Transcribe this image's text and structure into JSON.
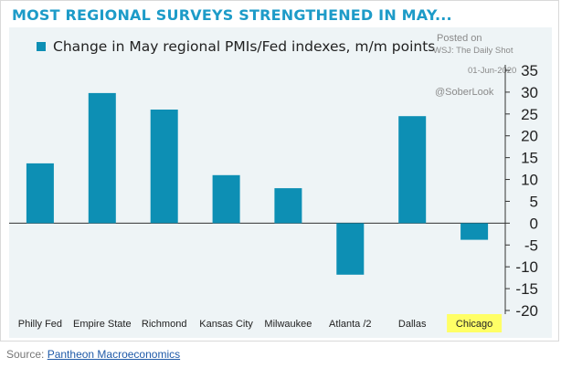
{
  "header": {
    "title": "MOST REGIONAL SURVEYS STRENGTHENED IN MAY..."
  },
  "legend": {
    "label": "Change in May regional PMIs/Fed indexes, m/m points"
  },
  "watermark": {
    "posted": "Posted on",
    "source": "WSJ: The Daily Shot",
    "date": "01-Jun-2020",
    "handle": "@SoberLook"
  },
  "footer": {
    "source_prefix": "Source: ",
    "source_link": "Pantheon Macroeconomics"
  },
  "colors": {
    "bar": "#0d8fb4",
    "title": "#1d9bc8",
    "highlight": "#ffff66",
    "panel": "#eef4f6"
  },
  "chart_data": {
    "type": "bar",
    "title": "MOST REGIONAL SURVEYS STRENGTHENED IN MAY...",
    "categories": [
      "Philly Fed",
      "Empire State",
      "Richmond",
      "Kansas City",
      "Milwaukee",
      "Atlanta /2",
      "Dallas",
      "Chicago"
    ],
    "series": [
      {
        "name": "Change in May regional PMIs/Fed indexes, m/m points",
        "values": [
          13.7,
          29.8,
          26.0,
          11.0,
          8.0,
          -11.8,
          24.5,
          -3.8
        ]
      }
    ],
    "highlight_category": "Chicago",
    "ylim": [
      -20,
      35
    ],
    "yticks": [
      -20,
      -15,
      -10,
      -5,
      0,
      5,
      10,
      15,
      20,
      25,
      30,
      35
    ],
    "y_axis_side": "right",
    "xlabel": "",
    "ylabel": "",
    "grid": false
  }
}
